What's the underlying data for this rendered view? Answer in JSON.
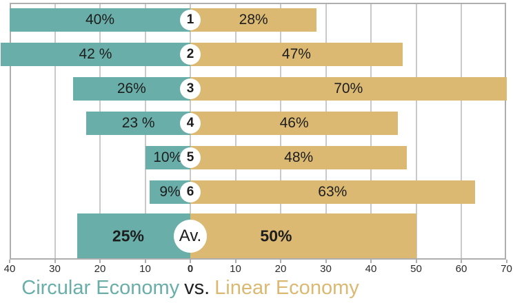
{
  "title": {
    "circular": "Circular Economy",
    "separator": "vs.",
    "linear": "Linear Economy"
  },
  "colors": {
    "circular": "#69AEA8",
    "linear": "#DBB972",
    "separator_text": "#222222",
    "label_text": "#1d1d1d",
    "grid": "#c9c9c9",
    "border": "#aeaeae",
    "tick_text": "#2a2a2a"
  },
  "chart_data": {
    "type": "bar",
    "variant": "diverging-horizontal",
    "title": "Circular Economy vs. Linear Economy",
    "categories": [
      "1",
      "2",
      "3",
      "4",
      "5",
      "6",
      "Av."
    ],
    "series": [
      {
        "name": "Circular Economy",
        "color": "#69AEA8",
        "values": [
          40,
          42,
          26,
          23,
          10,
          9,
          25
        ]
      },
      {
        "name": "Linear Economy",
        "color": "#DBB972",
        "values": [
          28,
          47,
          70,
          46,
          48,
          63,
          50
        ]
      }
    ],
    "rows": [
      {
        "id": "1",
        "circular": 40,
        "circular_label": "40%",
        "linear": 28,
        "linear_label": "28%",
        "emphasis": false
      },
      {
        "id": "2",
        "circular": 42,
        "circular_label": "42 %",
        "linear": 47,
        "linear_label": "47%",
        "emphasis": false
      },
      {
        "id": "3",
        "circular": 26,
        "circular_label": "26%",
        "linear": 70,
        "linear_label": "70%",
        "emphasis": false
      },
      {
        "id": "4",
        "circular": 23,
        "circular_label": "23 %",
        "linear": 46,
        "linear_label": "46%",
        "emphasis": false
      },
      {
        "id": "5",
        "circular": 10,
        "circular_label": "10%",
        "linear": 48,
        "linear_label": "48%",
        "emphasis": false
      },
      {
        "id": "6",
        "circular": 9,
        "circular_label": "9%",
        "linear": 63,
        "linear_label": "63%",
        "emphasis": false
      },
      {
        "id": "Av.",
        "circular": 25,
        "circular_label": "25%",
        "linear": 50,
        "linear_label": "50%",
        "emphasis": true
      }
    ],
    "axis": {
      "left_max": 40,
      "right_max": 70,
      "tick_step": 10,
      "grid": true,
      "zero_tick_bold": true,
      "ticks": [
        {
          "value": -40,
          "label": "40"
        },
        {
          "value": -30,
          "label": "30"
        },
        {
          "value": -20,
          "label": "20"
        },
        {
          "value": -10,
          "label": "10"
        },
        {
          "value": 0,
          "label": "0"
        },
        {
          "value": 10,
          "label": "10"
        },
        {
          "value": 20,
          "label": "20"
        },
        {
          "value": 30,
          "label": "30"
        },
        {
          "value": 40,
          "label": "40"
        },
        {
          "value": 50,
          "label": "50"
        },
        {
          "value": 60,
          "label": "60"
        },
        {
          "value": 70,
          "label": "70"
        }
      ]
    }
  }
}
